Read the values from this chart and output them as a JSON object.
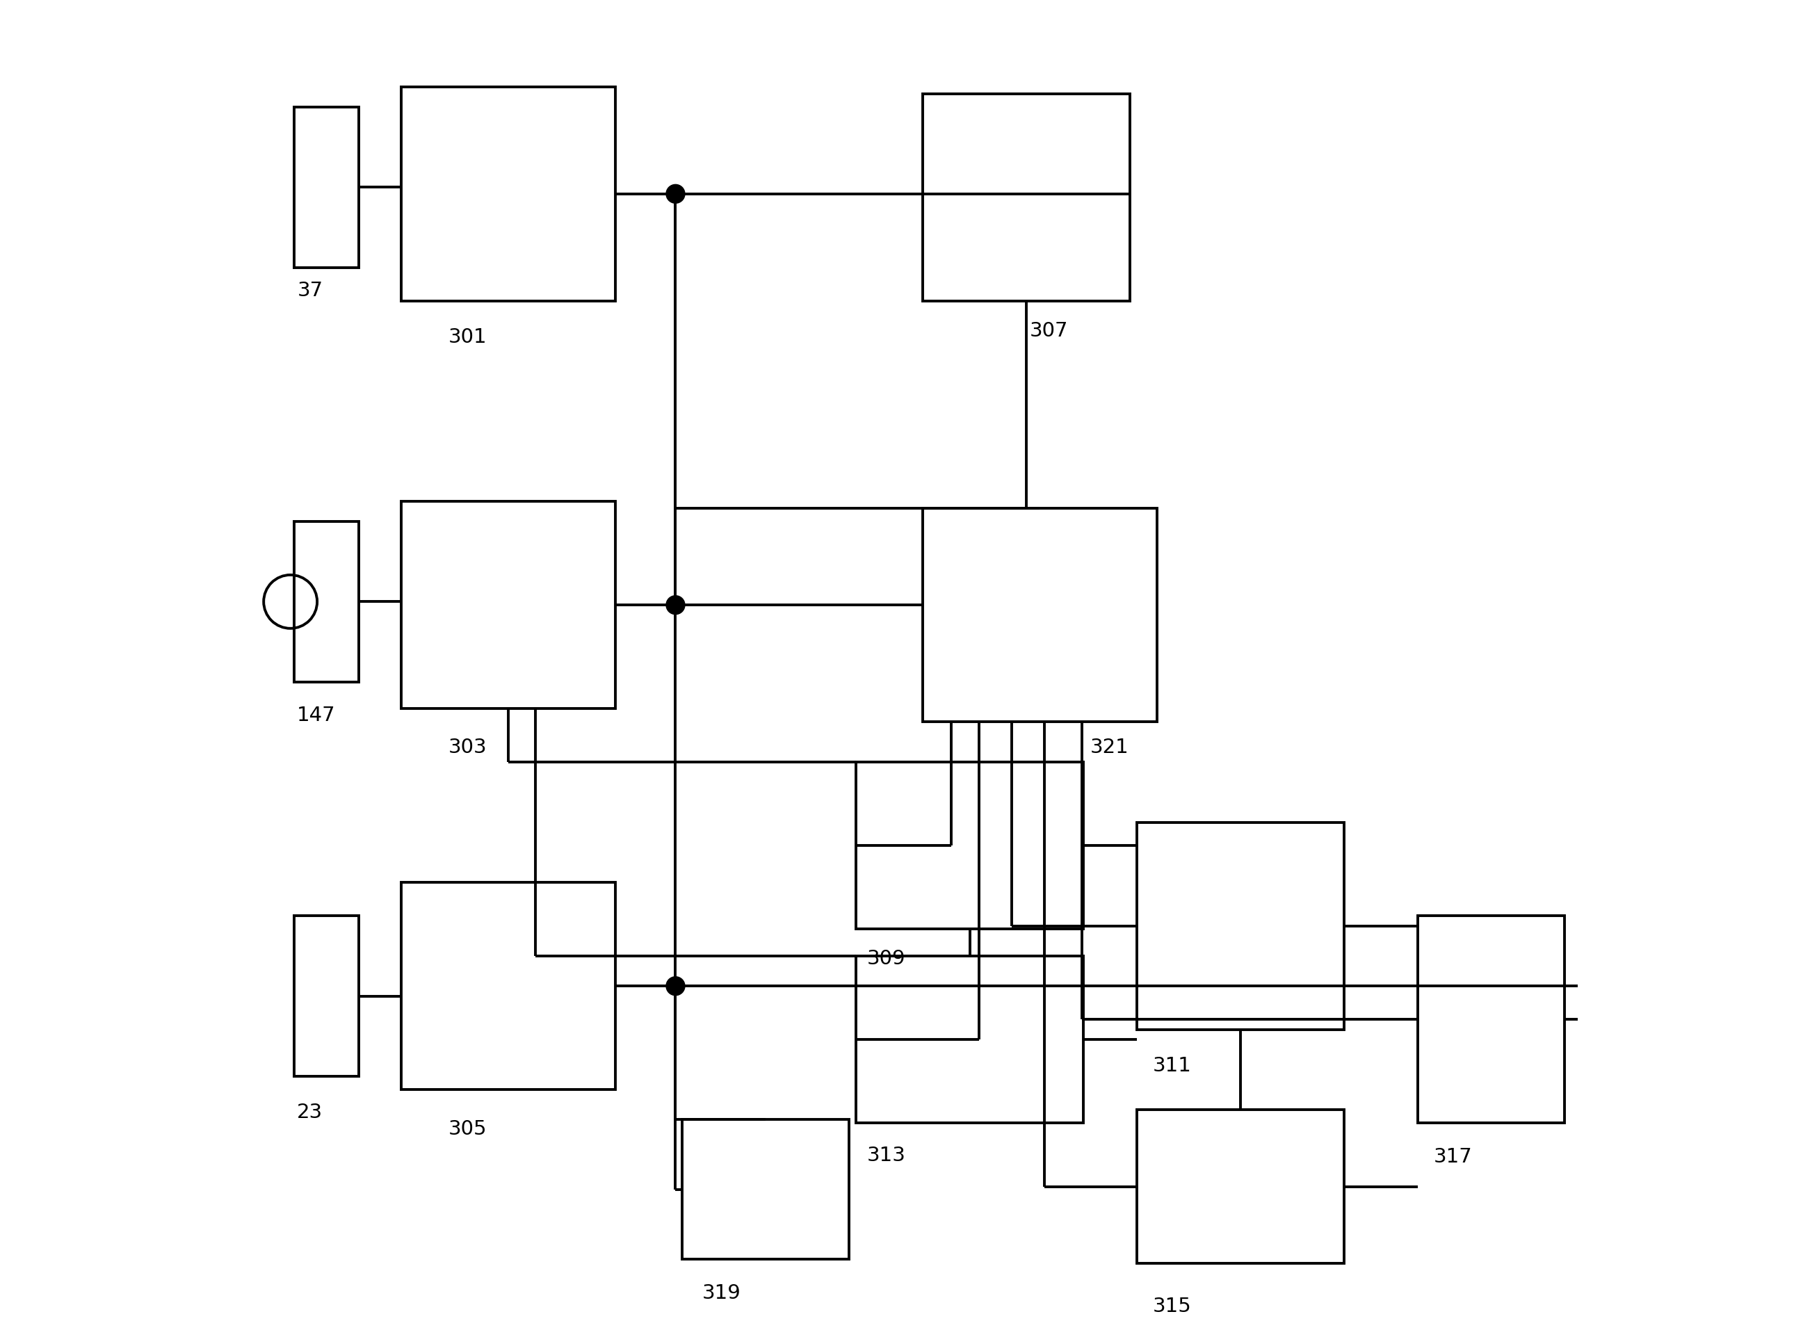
{
  "background_color": "#ffffff",
  "lw": 2.8,
  "dot_r": 0.007,
  "fs": 21,
  "boxes": {
    "37": [
      0.04,
      0.8,
      0.048,
      0.12
    ],
    "301": [
      0.12,
      0.775,
      0.16,
      0.16
    ],
    "307": [
      0.51,
      0.775,
      0.155,
      0.155
    ],
    "147": [
      0.04,
      0.49,
      0.048,
      0.12
    ],
    "303": [
      0.12,
      0.47,
      0.16,
      0.155
    ],
    "321": [
      0.51,
      0.46,
      0.175,
      0.16
    ],
    "23": [
      0.04,
      0.195,
      0.048,
      0.12
    ],
    "305": [
      0.12,
      0.185,
      0.16,
      0.155
    ],
    "309": [
      0.46,
      0.305,
      0.17,
      0.125
    ],
    "313": [
      0.46,
      0.16,
      0.17,
      0.125
    ],
    "319": [
      0.33,
      0.058,
      0.125,
      0.105
    ],
    "311": [
      0.67,
      0.23,
      0.155,
      0.155
    ],
    "315": [
      0.67,
      0.055,
      0.155,
      0.115
    ],
    "317": [
      0.88,
      0.16,
      0.11,
      0.155
    ]
  },
  "labels": {
    "37": [
      0.042,
      0.79,
      "37"
    ],
    "301": [
      0.155,
      0.755,
      "301"
    ],
    "307": [
      0.59,
      0.76,
      "307"
    ],
    "147": [
      0.042,
      0.472,
      "147"
    ],
    "303": [
      0.155,
      0.448,
      "303"
    ],
    "321": [
      0.635,
      0.448,
      "321"
    ],
    "23": [
      0.042,
      0.175,
      "23"
    ],
    "305": [
      0.155,
      0.163,
      "305"
    ],
    "309": [
      0.468,
      0.29,
      "309"
    ],
    "313": [
      0.468,
      0.143,
      "313"
    ],
    "319": [
      0.345,
      0.04,
      "319"
    ],
    "311": [
      0.682,
      0.21,
      "311"
    ],
    "315": [
      0.682,
      0.03,
      "315"
    ],
    "317": [
      0.892,
      0.142,
      "317"
    ]
  }
}
